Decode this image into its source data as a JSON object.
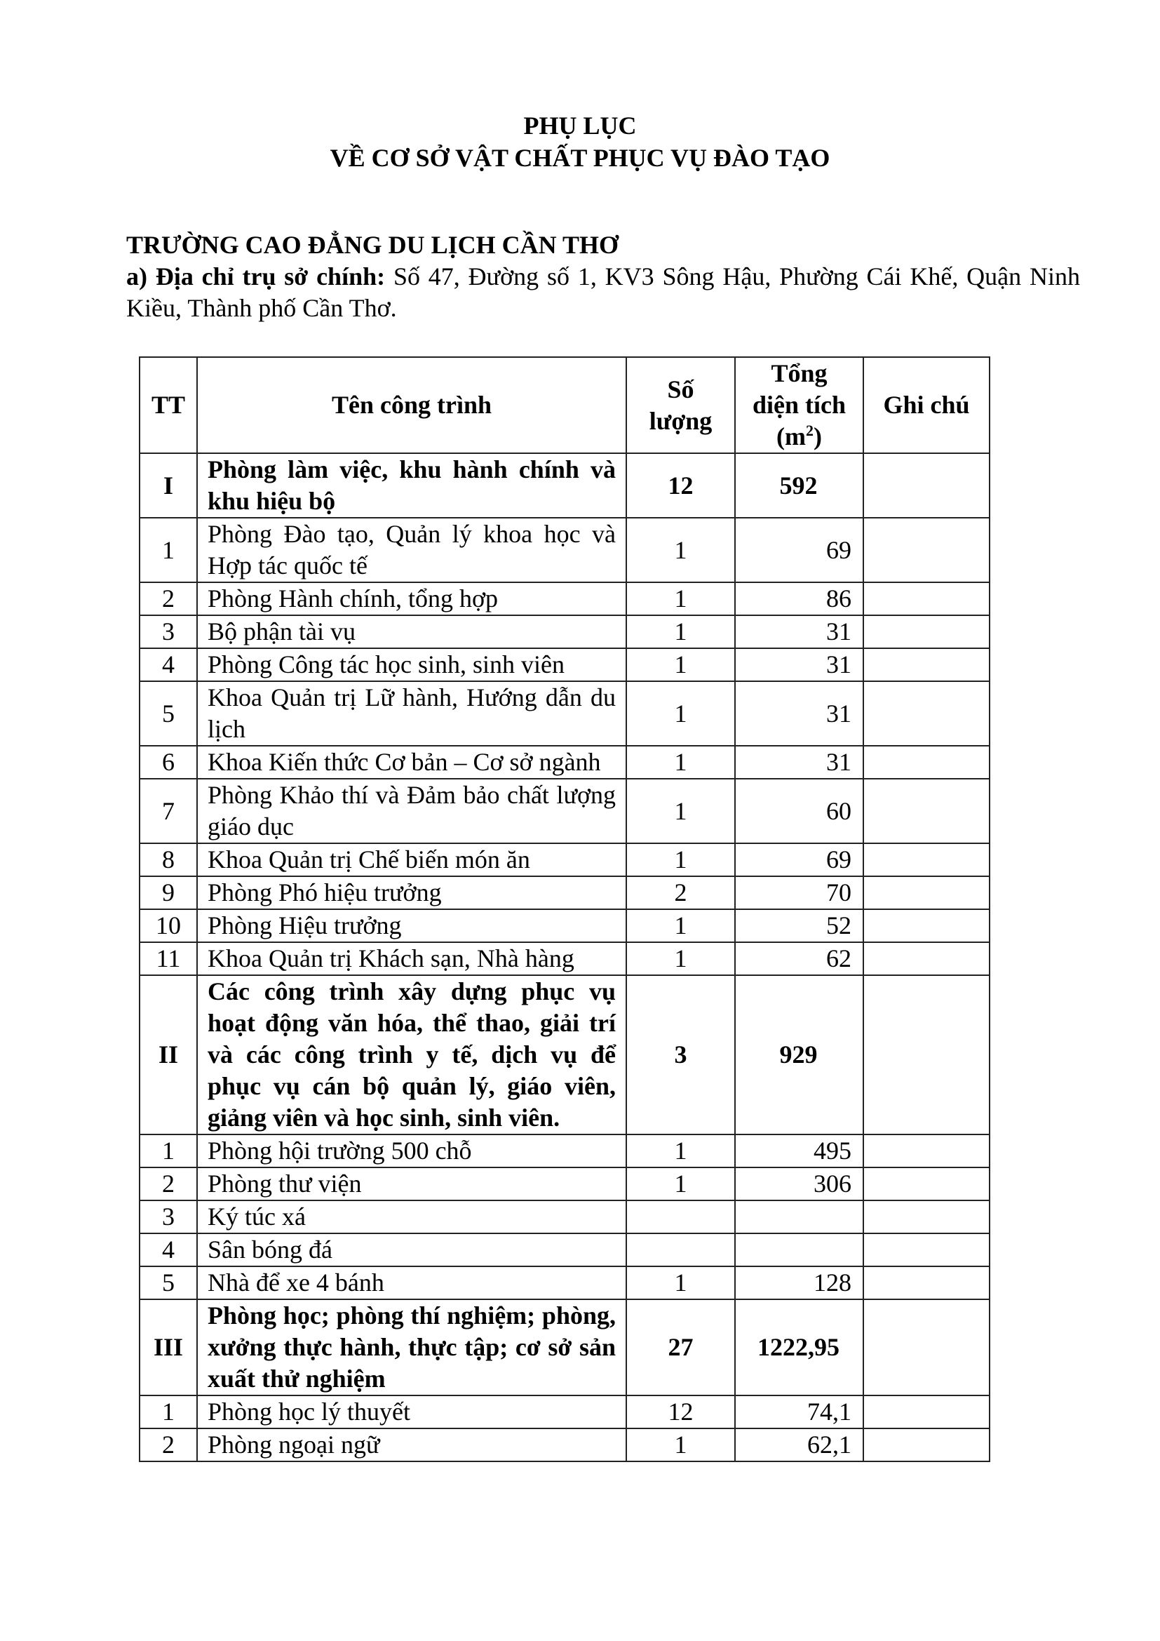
{
  "title": {
    "line1": "PHỤ LỤC",
    "line2": "VỀ CƠ SỞ VẬT CHẤT PHỤC VỤ ĐÀO TẠO"
  },
  "school": "TRƯỜNG CAO ĐẲNG DU LỊCH CẦN THƠ",
  "address": {
    "label": "a) Địa chỉ trụ sở chính:",
    "value": " Số 47, Đường số 1, KV3 Sông Hậu, Phường Cái Khế, Quận Ninh Kiều, Thành phố Cần Thơ."
  },
  "table": {
    "headers": {
      "tt": "TT",
      "name": "Tên công trình",
      "qty": "Số lượng",
      "area": "Tổng diện tích (m",
      "area_sup": "2",
      "area_close": ")",
      "note": "Ghi chú"
    },
    "rows": [
      {
        "tt": "I",
        "name": "Phòng làm việc, khu hành chính và khu hiệu bộ",
        "qty": "12",
        "area": "592",
        "group": true
      },
      {
        "tt": "1",
        "name": "Phòng Đào tạo, Quản lý khoa học và Hợp tác quốc tế",
        "qty": "1",
        "area": "69"
      },
      {
        "tt": "2",
        "name": "Phòng Hành chính, tổng hợp",
        "qty": "1",
        "area": "86"
      },
      {
        "tt": "3",
        "name": "Bộ phận tài vụ",
        "qty": "1",
        "area": "31"
      },
      {
        "tt": "4",
        "name": "Phòng Công tác học sinh, sinh viên",
        "qty": "1",
        "area": "31"
      },
      {
        "tt": "5",
        "name": "Khoa Quản trị Lữ hành, Hướng dẫn du lịch",
        "qty": "1",
        "area": "31"
      },
      {
        "tt": "6",
        "name": "Khoa Kiến thức Cơ bản – Cơ sở ngành",
        "qty": "1",
        "area": "31"
      },
      {
        "tt": "7",
        "name": "Phòng Khảo thí và Đảm bảo chất lượng giáo dục",
        "qty": "1",
        "area": "60"
      },
      {
        "tt": "8",
        "name": "Khoa Quản trị Chế biến món ăn",
        "qty": "1",
        "area": "69"
      },
      {
        "tt": "9",
        "name": "Phòng Phó hiệu trưởng",
        "qty": "2",
        "area": "70"
      },
      {
        "tt": "10",
        "name": "Phòng Hiệu trưởng",
        "qty": "1",
        "area": "52"
      },
      {
        "tt": "11",
        "name": "Khoa Quản trị Khách sạn, Nhà hàng",
        "qty": "1",
        "area": "62"
      },
      {
        "tt": "II",
        "name": "Các công trình xây dựng phục vụ hoạt động văn hóa, thể thao, giải trí và các công trình y tế, dịch vụ để phục vụ cán bộ quản lý, giáo viên, giảng viên và học sinh, sinh viên.",
        "qty": "3",
        "area": "929",
        "group": true
      },
      {
        "tt": "1",
        "name": "Phòng hội trường 500 chỗ",
        "qty": "1",
        "area": "495"
      },
      {
        "tt": "2",
        "name": "Phòng thư viện",
        "qty": "1",
        "area": "306"
      },
      {
        "tt": "3",
        "name": "Ký túc xá",
        "qty": "",
        "area": ""
      },
      {
        "tt": "4",
        "name": "Sân bóng đá",
        "qty": "",
        "area": ""
      },
      {
        "tt": "5",
        "name": "Nhà để xe 4 bánh",
        "qty": "1",
        "area": "128"
      },
      {
        "tt": "III",
        "name": "Phòng học; phòng thí nghiệm; phòng, xưởng thực hành, thực tập; cơ sở sản xuất thử nghiệm",
        "qty": "27",
        "area": "1222,95",
        "group": true
      },
      {
        "tt": "1",
        "name": "Phòng học lý thuyết",
        "qty": "12",
        "area": "74,1"
      },
      {
        "tt": "2",
        "name": "Phòng ngoại ngữ",
        "qty": "1",
        "area": "62,1"
      }
    ]
  }
}
